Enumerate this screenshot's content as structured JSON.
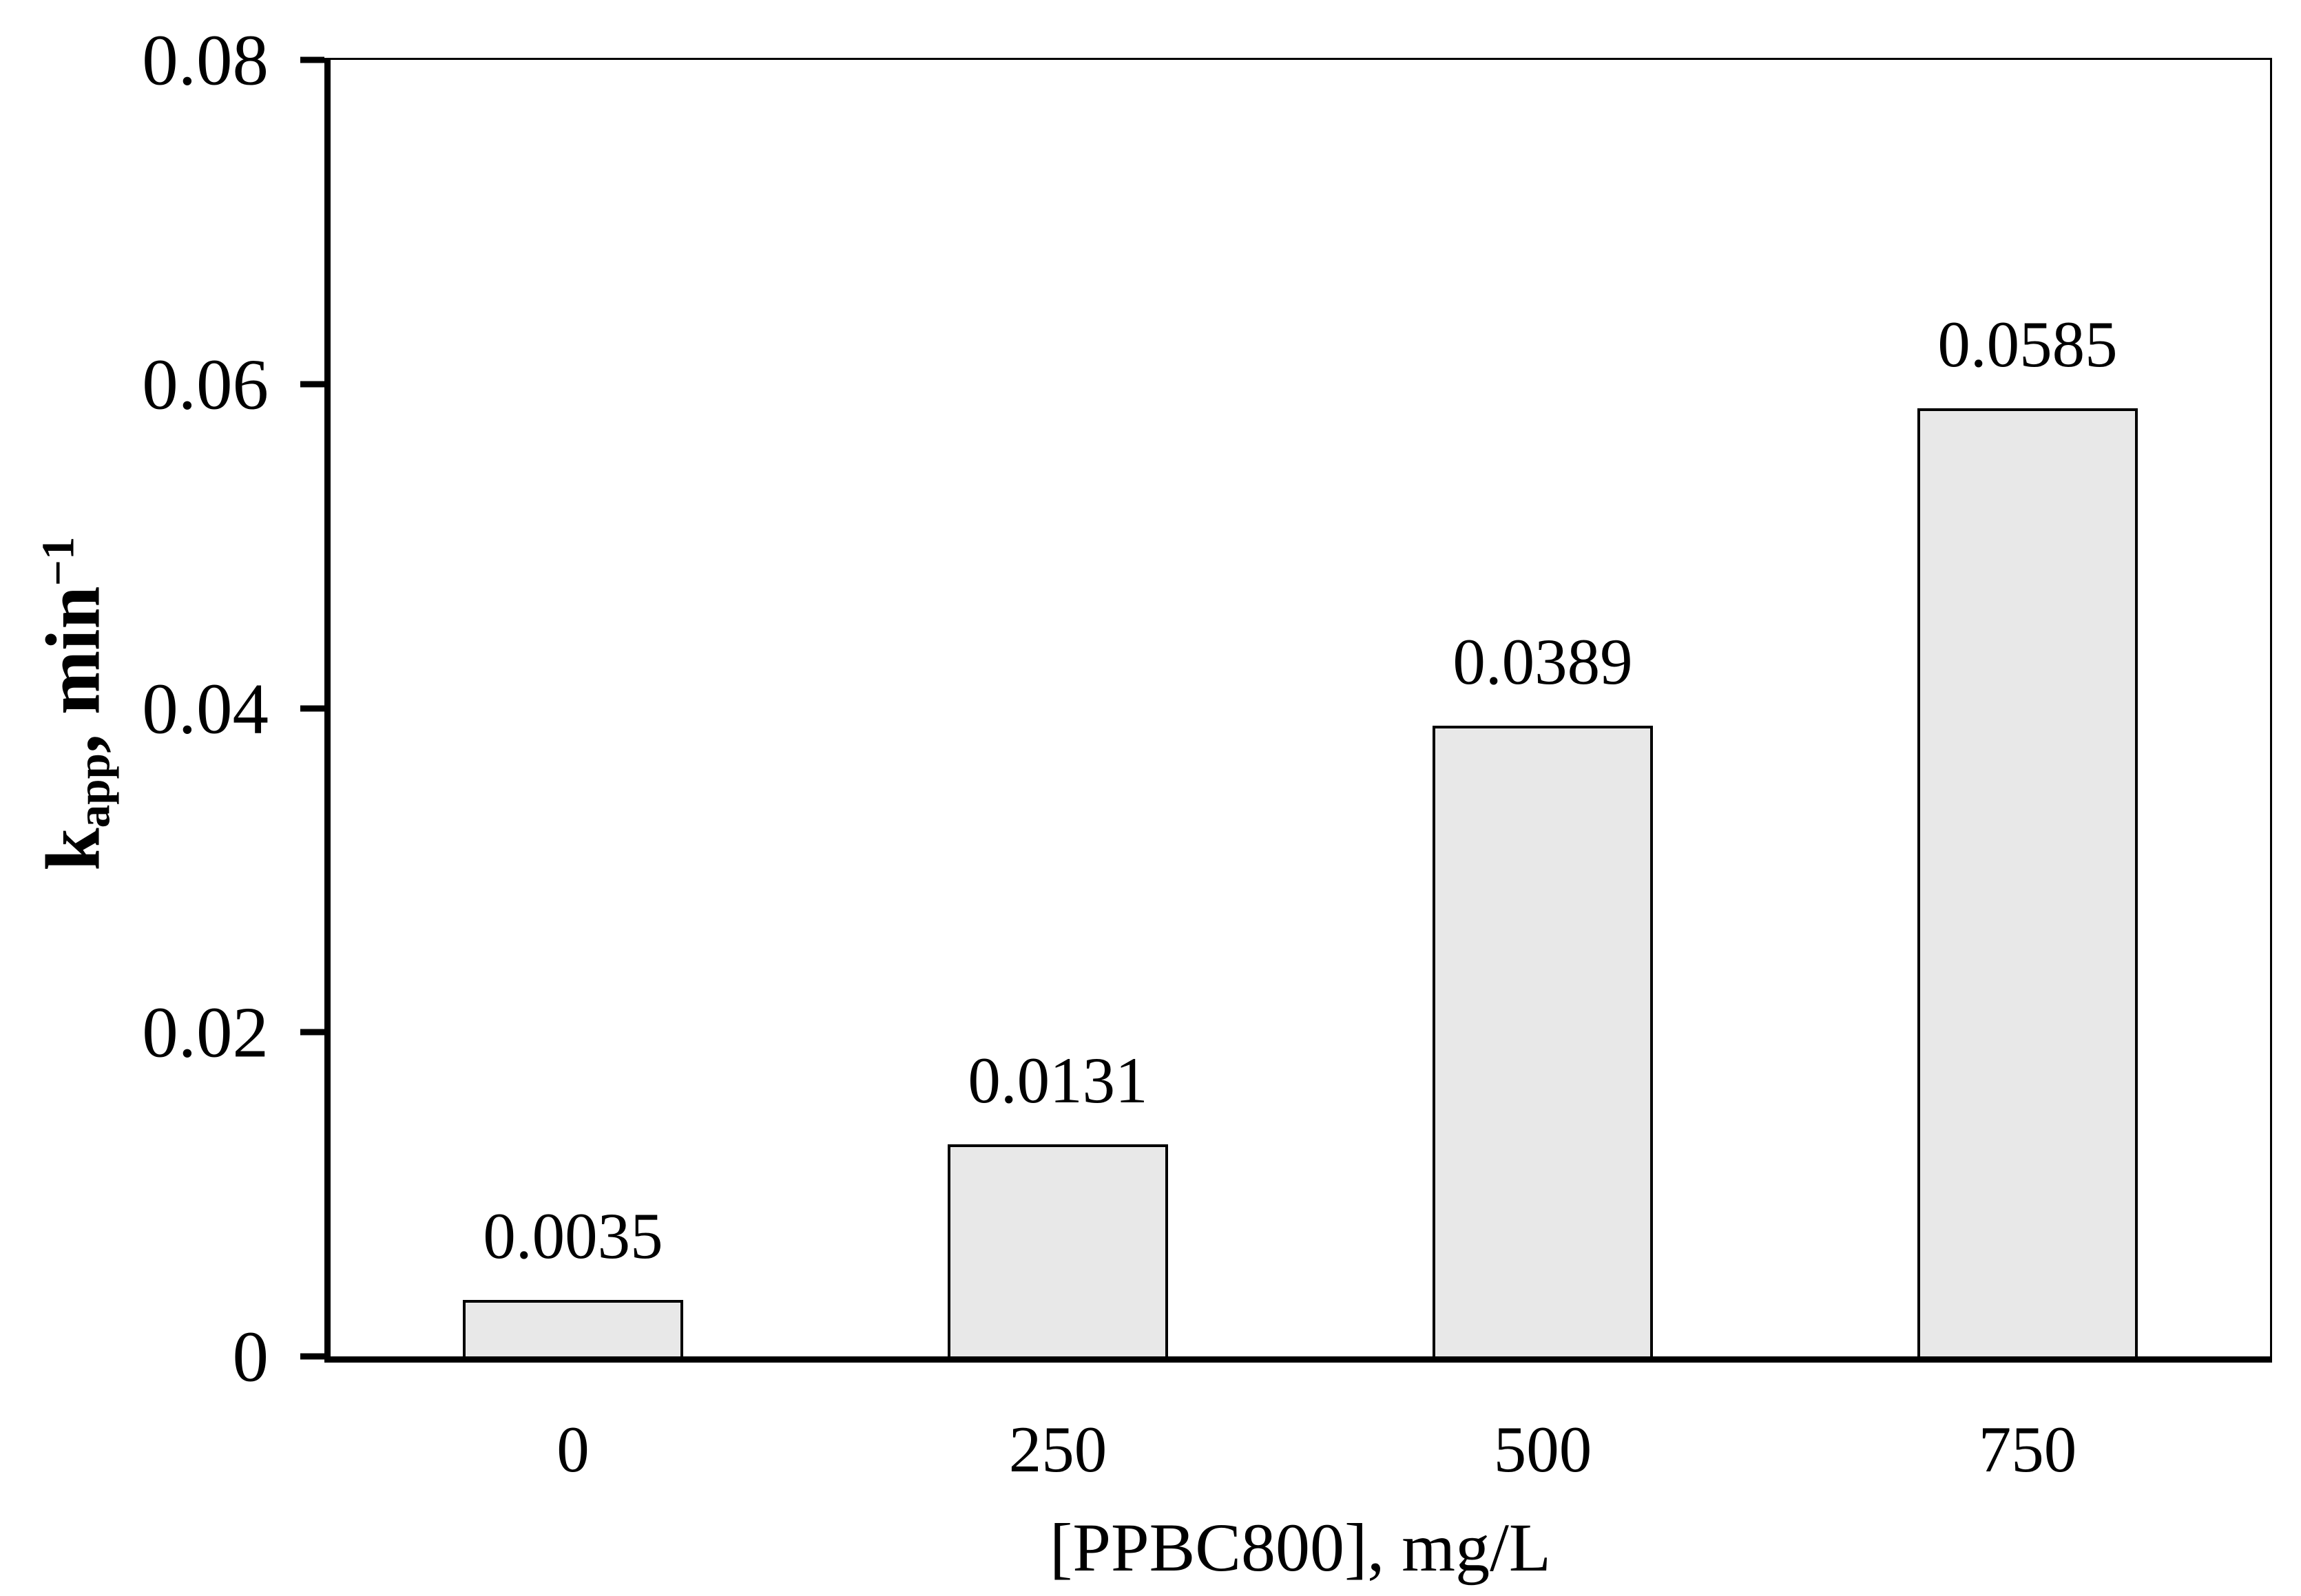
{
  "chart_data": {
    "type": "bar",
    "title": "",
    "categories": [
      "0",
      "250",
      "500",
      "750"
    ],
    "values": [
      0.0035,
      0.0131,
      0.0389,
      0.0585
    ],
    "bar_labels": [
      "0.0035",
      "0.0131",
      "0.0389",
      "0.0585"
    ],
    "xlabel": "[PPBC800], mg/L",
    "ylabel": {
      "base": "k",
      "subscript": "app",
      "rest": ", min",
      "superscript": "−1"
    },
    "ylim": [
      0,
      0.08
    ],
    "yticks": [
      {
        "value": 0,
        "label": "0"
      },
      {
        "value": 0.02,
        "label": "0.02"
      },
      {
        "value": 0.04,
        "label": "0.04"
      },
      {
        "value": 0.06,
        "label": "0.06"
      },
      {
        "value": 0.08,
        "label": "0.08"
      }
    ],
    "grid": false,
    "legend": null,
    "colors": {
      "bar_fill": "#e8e8e8",
      "bar_border": "#000000",
      "axis": "#000000",
      "text": "#000000",
      "background": "#ffffff"
    }
  }
}
